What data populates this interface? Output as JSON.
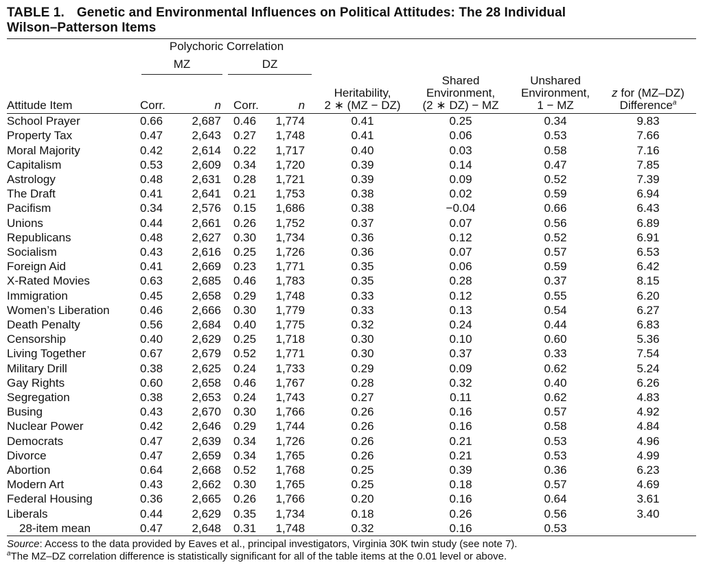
{
  "title": {
    "label": "TABLE 1.",
    "text_line1": "Genetic and Environmental Influences on Political Attitudes: The 28 Individual",
    "text_line2": "Wilson–Patterson Items"
  },
  "header": {
    "group": "Polychoric Correlation",
    "mz": "MZ",
    "dz": "DZ",
    "attitude_item": "Attitude Item",
    "corr": "Corr.",
    "n": "n",
    "heritability_1": "Heritability,",
    "heritability_2": "2 ∗ (MZ − DZ)",
    "shared_1": "Shared",
    "shared_2": "Environment,",
    "shared_3": "(2 ∗ DZ) − MZ",
    "unshared_1": "Unshared",
    "unshared_2": "Environment,",
    "unshared_3": "1 − MZ",
    "z_1a": "z",
    "z_1b": " for (MZ–DZ)",
    "z_2": "Difference",
    "z_sup": "a"
  },
  "rows": [
    {
      "item": "School Prayer",
      "mz_corr": "0.66",
      "mz_n": "2,687",
      "dz_corr": "0.46",
      "dz_n": "1,774",
      "her": "0.41",
      "shared": "0.25",
      "unshared": "0.34",
      "z": "9.83"
    },
    {
      "item": "Property Tax",
      "mz_corr": "0.47",
      "mz_n": "2,643",
      "dz_corr": "0.27",
      "dz_n": "1,748",
      "her": "0.41",
      "shared": "0.06",
      "unshared": "0.53",
      "z": "7.66"
    },
    {
      "item": "Moral Majority",
      "mz_corr": "0.42",
      "mz_n": "2,614",
      "dz_corr": "0.22",
      "dz_n": "1,717",
      "her": "0.40",
      "shared": "0.03",
      "unshared": "0.58",
      "z": "7.16"
    },
    {
      "item": "Capitalism",
      "mz_corr": "0.53",
      "mz_n": "2,609",
      "dz_corr": "0.34",
      "dz_n": "1,720",
      "her": "0.39",
      "shared": "0.14",
      "unshared": "0.47",
      "z": "7.85"
    },
    {
      "item": "Astrology",
      "mz_corr": "0.48",
      "mz_n": "2,631",
      "dz_corr": "0.28",
      "dz_n": "1,721",
      "her": "0.39",
      "shared": "0.09",
      "unshared": "0.52",
      "z": "7.39"
    },
    {
      "item": "The Draft",
      "mz_corr": "0.41",
      "mz_n": "2,641",
      "dz_corr": "0.21",
      "dz_n": "1,753",
      "her": "0.38",
      "shared": "0.02",
      "unshared": "0.59",
      "z": "6.94"
    },
    {
      "item": "Pacifism",
      "mz_corr": "0.34",
      "mz_n": "2,576",
      "dz_corr": "0.15",
      "dz_n": "1,686",
      "her": "0.38",
      "shared": "−0.04",
      "unshared": "0.66",
      "z": "6.43"
    },
    {
      "item": "Unions",
      "mz_corr": "0.44",
      "mz_n": "2,661",
      "dz_corr": "0.26",
      "dz_n": "1,752",
      "her": "0.37",
      "shared": "0.07",
      "unshared": "0.56",
      "z": "6.89"
    },
    {
      "item": "Republicans",
      "mz_corr": "0.48",
      "mz_n": "2,627",
      "dz_corr": "0.30",
      "dz_n": "1,734",
      "her": "0.36",
      "shared": "0.12",
      "unshared": "0.52",
      "z": "6.91"
    },
    {
      "item": "Socialism",
      "mz_corr": "0.43",
      "mz_n": "2,616",
      "dz_corr": "0.25",
      "dz_n": "1,726",
      "her": "0.36",
      "shared": "0.07",
      "unshared": "0.57",
      "z": "6.53"
    },
    {
      "item": "Foreign Aid",
      "mz_corr": "0.41",
      "mz_n": "2,669",
      "dz_corr": "0.23",
      "dz_n": "1,771",
      "her": "0.35",
      "shared": "0.06",
      "unshared": "0.59",
      "z": "6.42"
    },
    {
      "item": "X-Rated Movies",
      "mz_corr": "0.63",
      "mz_n": "2,685",
      "dz_corr": "0.46",
      "dz_n": "1,783",
      "her": "0.35",
      "shared": "0.28",
      "unshared": "0.37",
      "z": "8.15"
    },
    {
      "item": "Immigration",
      "mz_corr": "0.45",
      "mz_n": "2,658",
      "dz_corr": "0.29",
      "dz_n": "1,748",
      "her": "0.33",
      "shared": "0.12",
      "unshared": "0.55",
      "z": "6.20"
    },
    {
      "item": "Women’s Liberation",
      "mz_corr": "0.46",
      "mz_n": "2,666",
      "dz_corr": "0.30",
      "dz_n": "1,779",
      "her": "0.33",
      "shared": "0.13",
      "unshared": "0.54",
      "z": "6.27"
    },
    {
      "item": "Death Penalty",
      "mz_corr": "0.56",
      "mz_n": "2,684",
      "dz_corr": "0.40",
      "dz_n": "1,775",
      "her": "0.32",
      "shared": "0.24",
      "unshared": "0.44",
      "z": "6.83"
    },
    {
      "item": "Censorship",
      "mz_corr": "0.40",
      "mz_n": "2,629",
      "dz_corr": "0.25",
      "dz_n": "1,718",
      "her": "0.30",
      "shared": "0.10",
      "unshared": "0.60",
      "z": "5.36"
    },
    {
      "item": "Living Together",
      "mz_corr": "0.67",
      "mz_n": "2,679",
      "dz_corr": "0.52",
      "dz_n": "1,771",
      "her": "0.30",
      "shared": "0.37",
      "unshared": "0.33",
      "z": "7.54"
    },
    {
      "item": "Military Drill",
      "mz_corr": "0.38",
      "mz_n": "2,625",
      "dz_corr": "0.24",
      "dz_n": "1,733",
      "her": "0.29",
      "shared": "0.09",
      "unshared": "0.62",
      "z": "5.24"
    },
    {
      "item": "Gay Rights",
      "mz_corr": "0.60",
      "mz_n": "2,658",
      "dz_corr": "0.46",
      "dz_n": "1,767",
      "her": "0.28",
      "shared": "0.32",
      "unshared": "0.40",
      "z": "6.26"
    },
    {
      "item": "Segregation",
      "mz_corr": "0.38",
      "mz_n": "2,653",
      "dz_corr": "0.24",
      "dz_n": "1,743",
      "her": "0.27",
      "shared": "0.11",
      "unshared": "0.62",
      "z": "4.83"
    },
    {
      "item": "Busing",
      "mz_corr": "0.43",
      "mz_n": "2,670",
      "dz_corr": "0.30",
      "dz_n": "1,766",
      "her": "0.26",
      "shared": "0.16",
      "unshared": "0.57",
      "z": "4.92"
    },
    {
      "item": "Nuclear Power",
      "mz_corr": "0.42",
      "mz_n": "2,646",
      "dz_corr": "0.29",
      "dz_n": "1,744",
      "her": "0.26",
      "shared": "0.16",
      "unshared": "0.58",
      "z": "4.84"
    },
    {
      "item": "Democrats",
      "mz_corr": "0.47",
      "mz_n": "2,639",
      "dz_corr": "0.34",
      "dz_n": "1,726",
      "her": "0.26",
      "shared": "0.21",
      "unshared": "0.53",
      "z": "4.96"
    },
    {
      "item": "Divorce",
      "mz_corr": "0.47",
      "mz_n": "2,659",
      "dz_corr": "0.34",
      "dz_n": "1,765",
      "her": "0.26",
      "shared": "0.21",
      "unshared": "0.53",
      "z": "4.99"
    },
    {
      "item": "Abortion",
      "mz_corr": "0.64",
      "mz_n": "2,668",
      "dz_corr": "0.52",
      "dz_n": "1,768",
      "her": "0.25",
      "shared": "0.39",
      "unshared": "0.36",
      "z": "6.23"
    },
    {
      "item": "Modern Art",
      "mz_corr": "0.43",
      "mz_n": "2,662",
      "dz_corr": "0.30",
      "dz_n": "1,765",
      "her": "0.25",
      "shared": "0.18",
      "unshared": "0.57",
      "z": "4.69"
    },
    {
      "item": "Federal Housing",
      "mz_corr": "0.36",
      "mz_n": "2,665",
      "dz_corr": "0.26",
      "dz_n": "1,766",
      "her": "0.20",
      "shared": "0.16",
      "unshared": "0.64",
      "z": "3.61"
    },
    {
      "item": "Liberals",
      "mz_corr": "0.44",
      "mz_n": "2,629",
      "dz_corr": "0.35",
      "dz_n": "1,734",
      "her": "0.18",
      "shared": "0.26",
      "unshared": "0.56",
      "z": "3.40"
    }
  ],
  "mean_row": {
    "item": "28-item mean",
    "mz_corr": "0.47",
    "mz_n": "2,648",
    "dz_corr": "0.31",
    "dz_n": "1,748",
    "her": "0.32",
    "shared": "0.16",
    "unshared": "0.53",
    "z": ""
  },
  "notes": {
    "source_label": "Source",
    "source_text": ": Access to the data provided by Eaves et al., principal investigators, Virginia 30K twin study (see note 7).",
    "footnote_mark": "a",
    "footnote_text": "The MZ–DZ correlation difference is statistically significant for all of the table items at the 0.01 level or above."
  }
}
